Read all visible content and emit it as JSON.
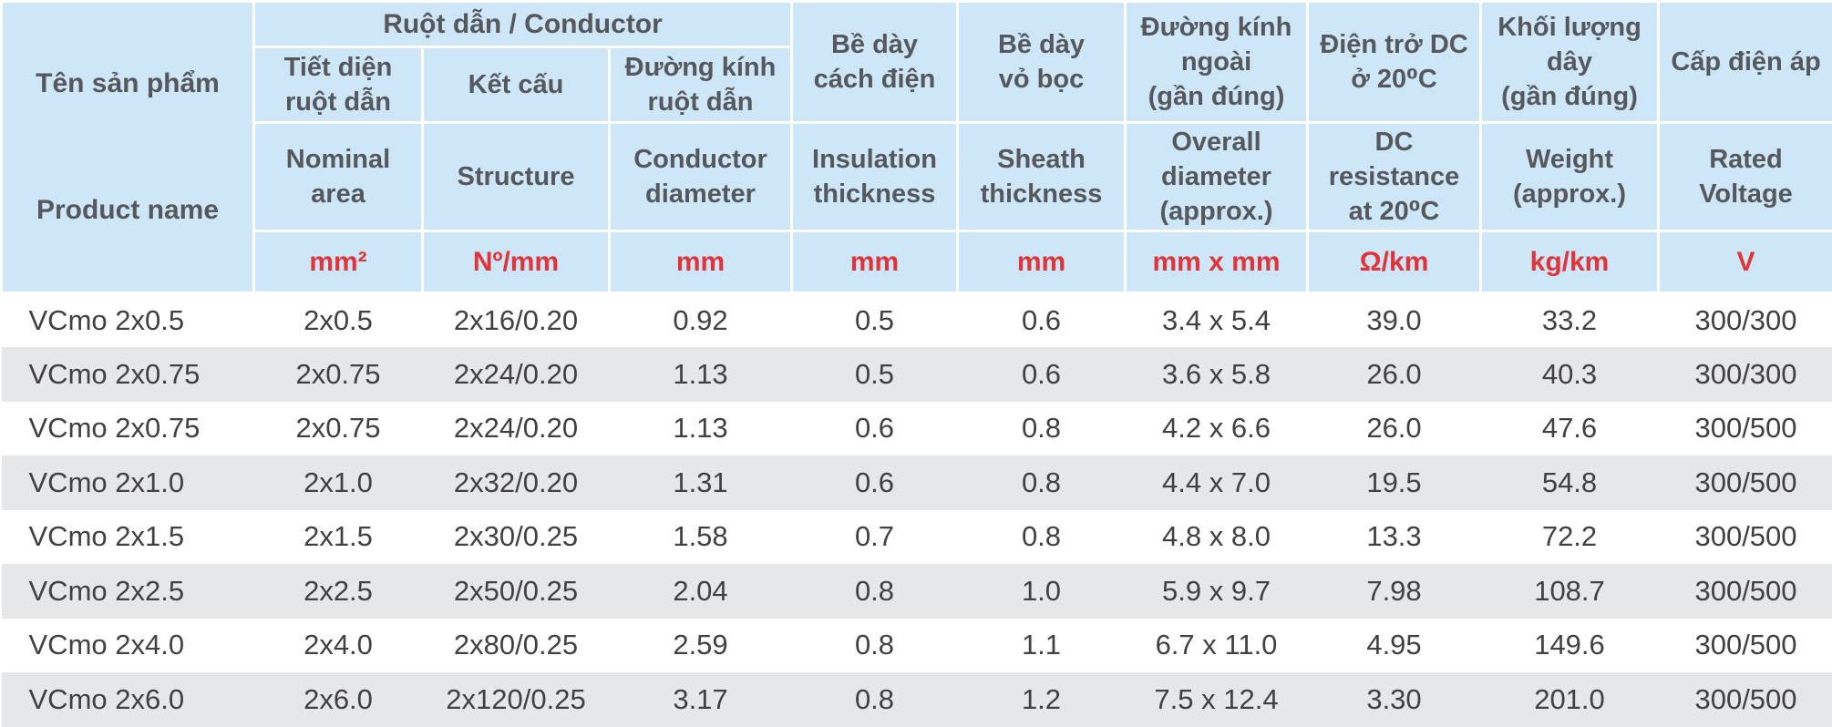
{
  "header": {
    "product_name_vi": "Tên sản phẩm",
    "product_name_en": "Product name",
    "conductor_group": "Ruột dẫn / Conductor",
    "vi_conductor": [
      "Tiết diện\nruột dẫn",
      "Kết cấu",
      "Đường kính\nruột dẫn"
    ],
    "vi_spanning": [
      "Bề dày\ncách điện",
      "Bề dày\nvỏ bọc",
      "Đường kính\nngoài\n(gần đúng)",
      "Điện trở DC\nở 20⁰C",
      "Khối lượng\ndây\n(gần đúng)",
      "Cấp điện áp"
    ],
    "en": [
      "Nominal\narea",
      "Structure",
      "Conductor\ndiameter",
      "Insulation\nthickness",
      "Sheath\nthickness",
      "Overall\ndiameter\n(approx.)",
      "DC\nresistance\nat 20⁰C",
      "Weight\n(approx.)",
      "Rated\nVoltage"
    ],
    "units": [
      "mm²",
      "Nº/mm",
      "mm",
      "mm",
      "mm",
      "mm x mm",
      "Ω/km",
      "kg/km",
      "V"
    ]
  },
  "table": {
    "rows": [
      [
        "VCmo 2x0.5",
        "2x0.5",
        "2x16/0.20",
        "0.92",
        "0.5",
        "0.6",
        "3.4 x 5.4",
        "39.0",
        "33.2",
        "300/300"
      ],
      [
        "VCmo 2x0.75",
        "2x0.75",
        "2x24/0.20",
        "1.13",
        "0.5",
        "0.6",
        "3.6 x 5.8",
        "26.0",
        "40.3",
        "300/300"
      ],
      [
        "VCmo 2x0.75",
        "2x0.75",
        "2x24/0.20",
        "1.13",
        "0.6",
        "0.8",
        "4.2 x 6.6",
        "26.0",
        "47.6",
        "300/500"
      ],
      [
        "VCmo 2x1.0",
        "2x1.0",
        "2x32/0.20",
        "1.31",
        "0.6",
        "0.8",
        "4.4 x 7.0",
        "19.5",
        "54.8",
        "300/500"
      ],
      [
        "VCmo 2x1.5",
        "2x1.5",
        "2x30/0.25",
        "1.58",
        "0.7",
        "0.8",
        "4.8 x 8.0",
        "13.3",
        "72.2",
        "300/500"
      ],
      [
        "VCmo 2x2.5",
        "2x2.5",
        "2x50/0.25",
        "2.04",
        "0.8",
        "1.0",
        "5.9 x 9.7",
        "7.98",
        "108.7",
        "300/500"
      ],
      [
        "VCmo 2x4.0",
        "2x4.0",
        "2x80/0.25",
        "2.59",
        "0.8",
        "1.1",
        "6.7 x 11.0",
        "4.95",
        "149.6",
        "300/500"
      ],
      [
        "VCmo 2x6.0",
        "2x6.0",
        "2x120/0.25",
        "3.17",
        "0.8",
        "1.2",
        "7.5 x 12.4",
        "3.30",
        "201.0",
        "300/500"
      ]
    ]
  },
  "colors": {
    "header_bg": "#cde7f8",
    "header_text": "#57585b",
    "unit_red": "#e13338",
    "data_text": "#414042",
    "stripe_gray": "#e6e7e8",
    "border_white": "#ffffff"
  }
}
